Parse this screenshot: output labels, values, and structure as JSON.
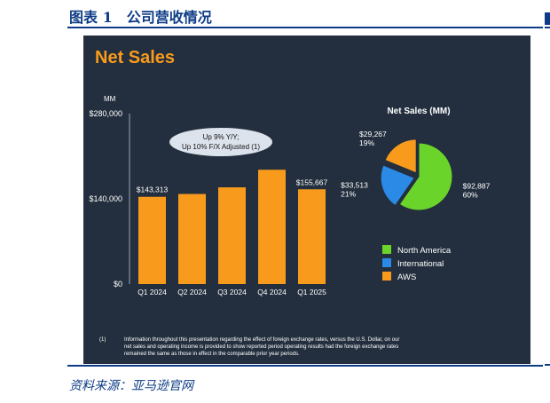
{
  "figure_title": "图表 1　公司营收情况",
  "source": "资料来源：亚马逊官网",
  "colors": {
    "slide_bg": "#232f3e",
    "bar": "#f89b1c",
    "title_orange": "#f89b1c",
    "north_america": "#6bd42a",
    "international": "#2a8ae6",
    "aws": "#f89b1c",
    "callout_bg": "#dde3ec",
    "header_blue": "#0e3c86"
  },
  "chart_data": [
    {
      "type": "bar",
      "title": "Net Sales",
      "unit_label": "MM",
      "categories": [
        "Q1 2024",
        "Q2 2024",
        "Q3 2024",
        "Q4 2024",
        "Q1 2025"
      ],
      "values": [
        143313,
        147977,
        158877,
        187792,
        155667
      ],
      "data_labels": [
        "$143,313",
        "",
        "",
        "",
        "$155,667"
      ],
      "y_ticks": [
        "$280,000",
        "$140,000",
        "$0"
      ],
      "y_tick_values": [
        280000,
        140000,
        0
      ],
      "ylim": [
        0,
        280000
      ],
      "annotation": [
        "Up 9% Y/Y;",
        "Up 10% F/X Adjusted (1)"
      ]
    },
    {
      "type": "pie",
      "title": "Net Sales (MM)",
      "slices": [
        {
          "name": "North America",
          "value": 92887,
          "label": "$92,887",
          "percent": "60%",
          "color": "#6bd42a"
        },
        {
          "name": "International",
          "value": 33513,
          "label": "$33,513",
          "percent": "21%",
          "color": "#2a8ae6"
        },
        {
          "name": "AWS",
          "value": 29267,
          "label": "$29,267",
          "percent": "19%",
          "color": "#f89b1c"
        }
      ],
      "legend": [
        "North America",
        "International",
        "AWS"
      ],
      "legend_position": "below"
    }
  ],
  "footnote": {
    "marker": "(1)",
    "lines": [
      "Information throughout this presentation regarding the effect of foreign exchange rates, versus the U.S. Dollar, on our",
      "net sales and operating income is provided to show reported period operating results had the foreign exchange rates",
      "remained the same as those in effect in the comparable prior year periods."
    ]
  }
}
